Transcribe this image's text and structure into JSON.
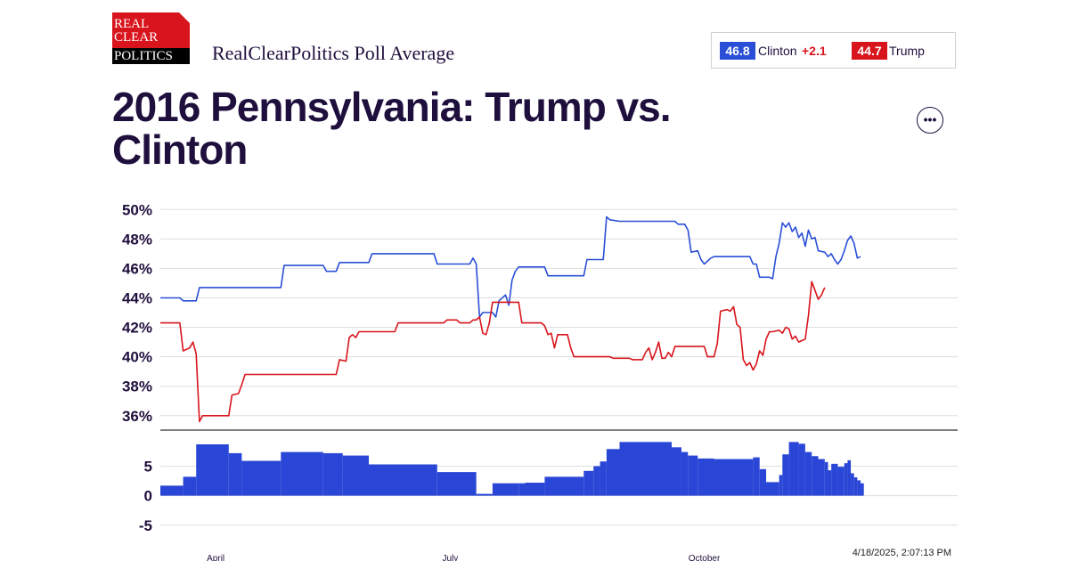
{
  "logo": {
    "line1": "REAL",
    "line2": "CLEAR",
    "line3": "POLITICS"
  },
  "subtitle": "RealClearPolitics Poll Average",
  "legend": {
    "clinton_value": "46.8",
    "clinton_name": "Clinton",
    "clinton_spread": "+2.1",
    "trump_value": "44.7",
    "trump_name": "Trump"
  },
  "title": "2016 Pennsylvania: Trump vs. Clinton",
  "more_button": "•••",
  "timestamp": "4/18/2025, 2:07:13 PM",
  "colors": {
    "clinton": "#2a4fd6",
    "trump": "#d8141c",
    "spread_bars": "#2a46d6",
    "text": "#1f0f3d"
  },
  "chart_data": {
    "type": "line",
    "top_panel": {
      "y_ticks": [
        "50%",
        "48%",
        "46%",
        "44%",
        "42%",
        "40%",
        "38%",
        "36%"
      ],
      "y_tick_values": [
        50,
        48,
        46,
        44,
        42,
        40,
        38,
        36
      ],
      "ylim": [
        35.2,
        50.5
      ],
      "xlim": [
        0,
        245
      ],
      "series": [
        {
          "name": "Clinton",
          "points": [
            [
              0,
              44
            ],
            [
              6,
              44
            ],
            [
              7,
              43.8
            ],
            [
              11,
              43.8
            ],
            [
              12,
              44.7
            ],
            [
              37,
              44.7
            ],
            [
              38,
              46.2
            ],
            [
              50,
              46.2
            ],
            [
              51,
              45.8
            ],
            [
              54,
              45.8
            ],
            [
              55,
              46.4
            ],
            [
              64,
              46.4
            ],
            [
              65,
              47
            ],
            [
              84,
              47
            ],
            [
              85,
              46.3
            ],
            [
              95,
              46.3
            ],
            [
              96,
              46.7
            ],
            [
              97,
              46.3
            ],
            [
              98,
              42.7
            ],
            [
              99,
              43
            ],
            [
              102,
              43
            ],
            [
              103,
              42.7
            ],
            [
              104,
              43.8
            ],
            [
              106,
              44.2
            ],
            [
              107,
              43.5
            ],
            [
              108,
              45.2
            ],
            [
              109,
              45.8
            ],
            [
              110,
              46.1
            ],
            [
              118,
              46.1
            ],
            [
              119,
              45.5
            ],
            [
              130,
              45.5
            ],
            [
              131,
              46.6
            ],
            [
              136,
              46.6
            ],
            [
              137,
              49.5
            ],
            [
              138,
              49.3
            ],
            [
              141,
              49.2
            ],
            [
              158,
              49.2
            ],
            [
              159,
              49
            ],
            [
              161,
              49
            ],
            [
              162,
              48.6
            ],
            [
              163,
              47.1
            ],
            [
              165,
              47.2
            ],
            [
              166,
              46.6
            ],
            [
              167,
              46.3
            ],
            [
              169,
              46.7
            ],
            [
              170,
              46.8
            ],
            [
              181,
              46.8
            ],
            [
              182,
              46.3
            ],
            [
              183,
              46.3
            ],
            [
              184,
              45.4
            ],
            [
              187,
              45.4
            ],
            [
              188,
              45.3
            ],
            [
              189,
              46.8
            ],
            [
              190,
              47.7
            ],
            [
              191,
              49.1
            ],
            [
              192,
              48.8
            ],
            [
              193,
              49.1
            ],
            [
              194,
              48.5
            ],
            [
              195,
              48.8
            ],
            [
              196,
              48.1
            ],
            [
              197,
              48.4
            ],
            [
              198,
              47.5
            ],
            [
              199,
              48.6
            ],
            [
              200,
              48
            ],
            [
              201,
              48.1
            ],
            [
              202,
              47.2
            ],
            [
              204,
              47.1
            ],
            [
              205,
              46.8
            ],
            [
              206,
              47
            ],
            [
              207,
              46.6
            ],
            [
              208,
              46.3
            ],
            [
              209,
              46.6
            ],
            [
              210,
              47.2
            ],
            [
              211,
              47.9
            ],
            [
              212,
              48.2
            ],
            [
              213,
              47.7
            ],
            [
              214,
              46.7
            ],
            [
              215,
              46.8
            ]
          ]
        },
        {
          "name": "Trump",
          "points": [
            [
              0,
              42.3
            ],
            [
              6,
              42.3
            ],
            [
              7,
              40.4
            ],
            [
              9,
              40.6
            ],
            [
              10,
              41
            ],
            [
              11,
              40.2
            ],
            [
              12,
              35.6
            ],
            [
              13,
              36
            ],
            [
              21,
              36
            ],
            [
              22,
              37.4
            ],
            [
              24,
              37.5
            ],
            [
              25,
              38.1
            ],
            [
              26,
              38.8
            ],
            [
              54,
              38.8
            ],
            [
              55,
              39.8
            ],
            [
              57,
              39.7
            ],
            [
              58,
              41.3
            ],
            [
              59,
              41.5
            ],
            [
              60,
              41.3
            ],
            [
              61,
              41.7
            ],
            [
              72,
              41.7
            ],
            [
              73,
              42.3
            ],
            [
              87,
              42.3
            ],
            [
              88,
              42.5
            ],
            [
              91,
              42.5
            ],
            [
              92,
              42.3
            ],
            [
              95,
              42.3
            ],
            [
              96,
              42.5
            ],
            [
              97,
              42.5
            ],
            [
              98,
              42.7
            ],
            [
              99,
              41.6
            ],
            [
              100,
              41.5
            ],
            [
              101,
              42.3
            ],
            [
              102,
              43.7
            ],
            [
              110,
              43.7
            ],
            [
              111,
              42.3
            ],
            [
              117,
              42.3
            ],
            [
              118,
              42.1
            ],
            [
              119,
              41.5
            ],
            [
              120,
              41.6
            ],
            [
              121,
              40.6
            ],
            [
              122,
              41.5
            ],
            [
              125,
              41.5
            ],
            [
              126,
              40.6
            ],
            [
              127,
              40
            ],
            [
              138,
              40
            ],
            [
              139,
              39.9
            ],
            [
              144,
              39.9
            ],
            [
              145,
              39.8
            ],
            [
              148,
              39.8
            ],
            [
              149,
              40.3
            ],
            [
              150,
              40.6
            ],
            [
              151,
              39.8
            ],
            [
              152,
              40.3
            ],
            [
              153,
              41
            ],
            [
              154,
              39.9
            ],
            [
              155,
              39.9
            ],
            [
              156,
              40.3
            ],
            [
              157,
              40
            ],
            [
              158,
              40.7
            ],
            [
              167,
              40.7
            ],
            [
              168,
              40
            ],
            [
              170,
              40
            ],
            [
              171,
              40.9
            ],
            [
              172,
              43.1
            ],
            [
              174,
              43.2
            ],
            [
              175,
              43.1
            ],
            [
              176,
              43.4
            ],
            [
              177,
              42.2
            ],
            [
              178,
              42
            ],
            [
              179,
              39.8
            ],
            [
              180,
              39.4
            ],
            [
              181,
              39.6
            ],
            [
              182,
              39.1
            ],
            [
              183,
              39.5
            ],
            [
              184,
              40.4
            ],
            [
              185,
              40.1
            ],
            [
              186,
              41.2
            ],
            [
              187,
              41.7
            ],
            [
              188,
              41.7
            ],
            [
              190,
              41.8
            ],
            [
              191,
              41.6
            ],
            [
              192,
              42
            ],
            [
              193,
              41.9
            ],
            [
              194,
              41.2
            ],
            [
              195,
              41.4
            ],
            [
              196,
              41
            ],
            [
              198,
              41.2
            ],
            [
              199,
              42.8
            ],
            [
              200,
              45.1
            ],
            [
              201,
              44.5
            ],
            [
              202,
              43.9
            ],
            [
              203,
              44.2
            ],
            [
              204,
              44.7
            ]
          ]
        }
      ]
    },
    "bottom_panel": {
      "label": "spread",
      "y_ticks": [
        "5",
        "0",
        "-5"
      ],
      "y_tick_values": [
        5,
        0,
        -5
      ],
      "ylim": [
        -7,
        9
      ],
      "bars": [
        [
          0,
          1.7
        ],
        [
          7,
          3.2
        ],
        [
          11,
          8.7
        ],
        [
          21,
          7.2
        ],
        [
          25,
          5.9
        ],
        [
          37,
          7.4
        ],
        [
          50,
          7.2
        ],
        [
          56,
          6.8
        ],
        [
          64,
          5.3
        ],
        [
          85,
          4
        ],
        [
          97,
          0.3
        ],
        [
          102,
          2.1
        ],
        [
          110,
          2.1
        ],
        [
          112,
          2.2
        ],
        [
          118,
          3.2
        ],
        [
          130,
          4.2
        ],
        [
          133,
          5
        ],
        [
          135,
          5.8
        ],
        [
          137,
          7.9
        ],
        [
          141,
          9.1
        ],
        [
          157,
          8.2
        ],
        [
          160,
          7.4
        ],
        [
          162,
          6.8
        ],
        [
          165,
          6.3
        ],
        [
          170,
          6.2
        ],
        [
          182,
          6.5
        ],
        [
          184,
          4.5
        ],
        [
          186,
          2.3
        ],
        [
          190,
          3.5
        ],
        [
          191,
          7
        ],
        [
          193,
          9.1
        ],
        [
          196,
          8.8
        ],
        [
          198,
          7.4
        ],
        [
          200,
          6.7
        ],
        [
          202,
          6.2
        ],
        [
          204,
          5.7
        ],
        [
          205,
          4.3
        ],
        [
          206,
          5.4
        ],
        [
          208,
          4.9
        ],
        [
          210,
          5.5
        ],
        [
          211,
          6
        ],
        [
          212,
          3.8
        ],
        [
          213,
          3.1
        ],
        [
          214,
          2.6
        ],
        [
          215,
          2.1
        ]
      ],
      "last_x": 215
    },
    "x_ticks": [
      {
        "label": "April",
        "x": 17
      },
      {
        "label": "July",
        "x": 89
      },
      {
        "label": "October",
        "x": 167
      }
    ],
    "grid": true,
    "legend_position": "top-right"
  }
}
